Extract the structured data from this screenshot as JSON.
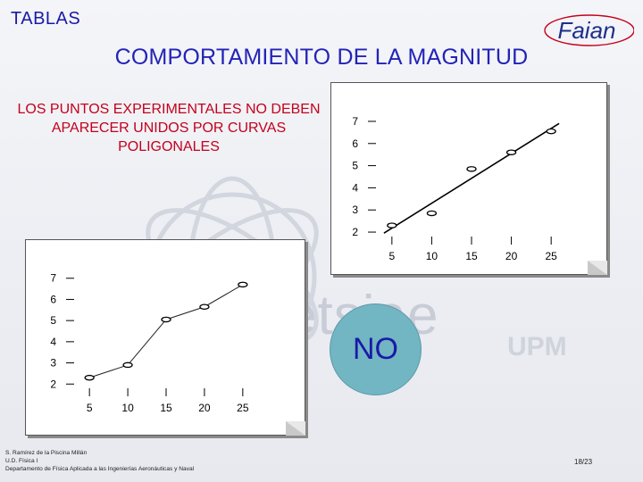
{
  "section_label": "TABLAS",
  "title": "COMPORTAMIENTO DE LA MAGNITUD",
  "logo_text": "Faian",
  "statement": "LOS PUNTOS EXPERIMENTALES NO DEBEN APARECER UNIDOS POR CURVAS POLIGONALES",
  "verdict": "NO",
  "watermark": {
    "main": "etsiae",
    "sub": "UPM"
  },
  "footer": {
    "line1": "S. Ramírez de la Piscina Millán",
    "line2": "U.D. Física I",
    "line3": "Departamento de Física Aplicada a las Ingenierías Aeronáuticas y Naval"
  },
  "page_number": "18/23",
  "colors": {
    "title": "#2323b8",
    "statement": "#c4001c",
    "verdict_circle": "#72b5c3"
  },
  "chart_data": [
    {
      "type": "scatter",
      "fit": "straight-line",
      "x": [
        5,
        10,
        15,
        20,
        25
      ],
      "y": [
        2.3,
        2.85,
        4.85,
        5.6,
        6.55
      ],
      "xticks": [
        "5",
        "10",
        "15",
        "20",
        "25"
      ],
      "yticks": [
        "2",
        "3",
        "4",
        "5",
        "6",
        "7"
      ],
      "xlim": [
        3,
        27
      ],
      "ylim": [
        1.8,
        7.2
      ],
      "grid": false
    },
    {
      "type": "line",
      "markers": true,
      "x": [
        5,
        10,
        15,
        20,
        25
      ],
      "y": [
        2.3,
        2.9,
        5.05,
        5.65,
        6.7
      ],
      "xticks": [
        "5",
        "10",
        "15",
        "20",
        "25"
      ],
      "yticks": [
        "2",
        "3",
        "4",
        "5",
        "6",
        "7"
      ],
      "xlim": [
        3,
        27
      ],
      "ylim": [
        1.8,
        7.2
      ],
      "grid": false
    }
  ]
}
